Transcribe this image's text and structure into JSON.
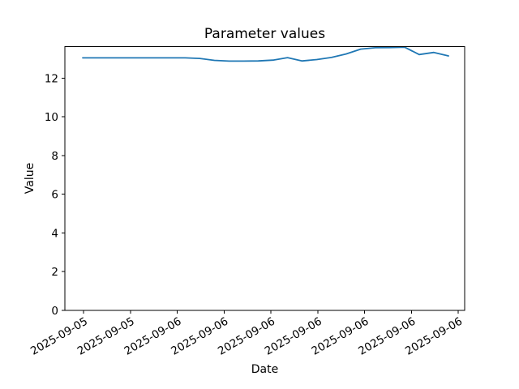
{
  "figure": {
    "background_color": "#ffffff",
    "axis_color": "#000000"
  },
  "chart_data": {
    "type": "line",
    "title": "Parameter values",
    "xlabel": "Date",
    "ylabel": "Value",
    "grid": false,
    "legend": null,
    "ylim": [
      0,
      13.63
    ],
    "y_ticks": [
      0,
      2,
      4,
      6,
      8,
      10,
      12
    ],
    "x_tick_labels": [
      "2025-09-05",
      "2025-09-05",
      "2025-09-06",
      "2025-09-06",
      "2025-09-06",
      "2025-09-06",
      "2025-09-06",
      "2025-09-06",
      "2025-09-06"
    ],
    "x_tick_rotation_deg": 30,
    "series": [
      {
        "name": "parameter",
        "color": "#1f77b4",
        "values": [
          13.05,
          13.05,
          13.05,
          13.05,
          13.05,
          13.05,
          13.05,
          13.05,
          13.02,
          12.92,
          12.88,
          12.88,
          12.89,
          12.93,
          13.06,
          12.89,
          12.96,
          13.07,
          13.25,
          13.5,
          13.57,
          13.58,
          13.6,
          13.22,
          13.33,
          13.15
        ]
      }
    ]
  }
}
